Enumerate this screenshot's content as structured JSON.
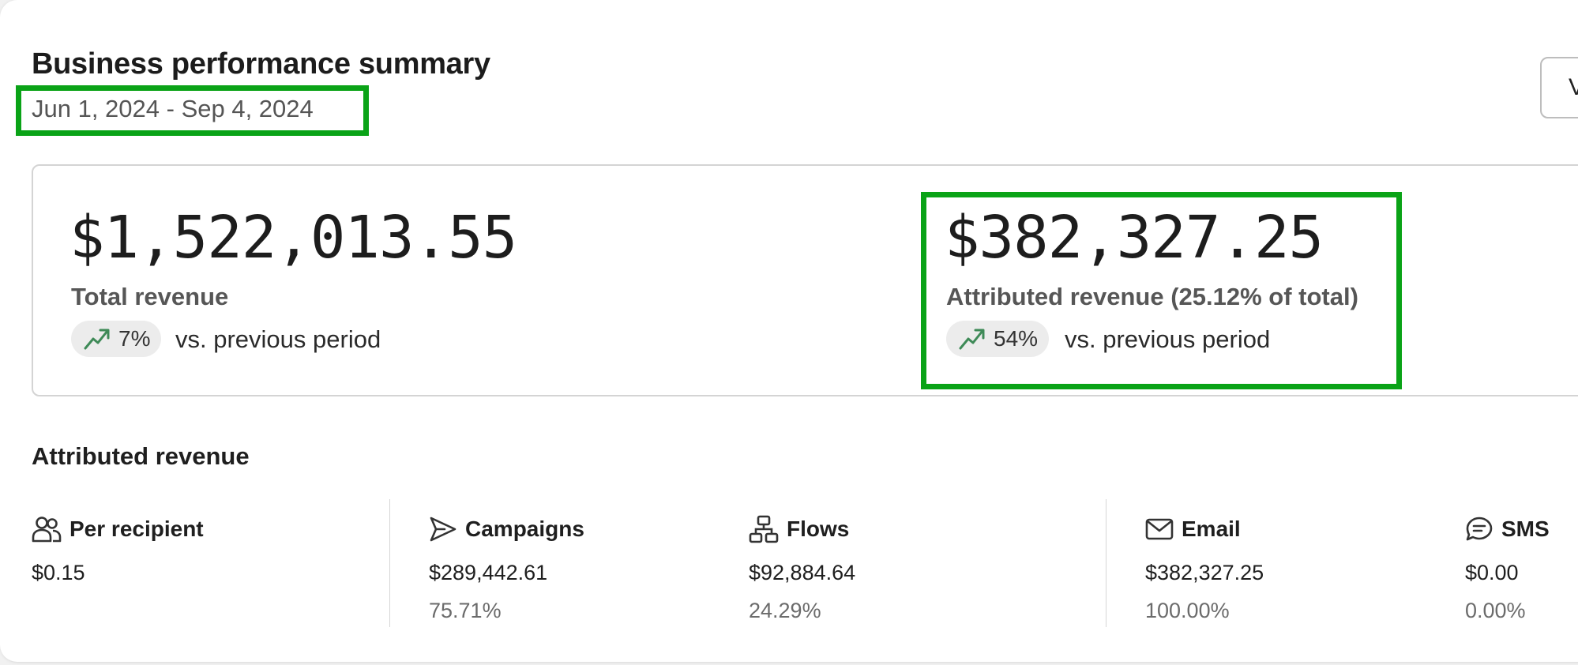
{
  "header": {
    "title": "Business performance summary",
    "date_range": "Jun 1, 2024 - Sep 4, 2024",
    "button_label": "V"
  },
  "metrics": {
    "total": {
      "value": "$1,522,013.55",
      "label": "Total revenue",
      "change": "7%",
      "comparison": "vs. previous period"
    },
    "attributed": {
      "value": "$382,327.25",
      "label": "Attributed revenue (25.12% of total)",
      "change": "54%",
      "comparison": "vs. previous period"
    }
  },
  "attributed_section": {
    "title": "Attributed revenue",
    "stats": [
      {
        "label": "Per recipient",
        "value": "$0.15",
        "percent": "",
        "icon": "people-icon"
      },
      {
        "label": "Campaigns",
        "value": "$289,442.61",
        "percent": "75.71%",
        "icon": "send-icon"
      },
      {
        "label": "Flows",
        "value": "$92,884.64",
        "percent": "24.29%",
        "icon": "flow-icon"
      },
      {
        "label": "Email",
        "value": "$382,327.25",
        "percent": "100.00%",
        "icon": "mail-icon"
      },
      {
        "label": "SMS",
        "value": "$0.00",
        "percent": "0.00%",
        "icon": "chat-bubble-icon"
      }
    ]
  },
  "colors": {
    "highlight": "#0aa317",
    "trend_up": "#3e8a57"
  }
}
